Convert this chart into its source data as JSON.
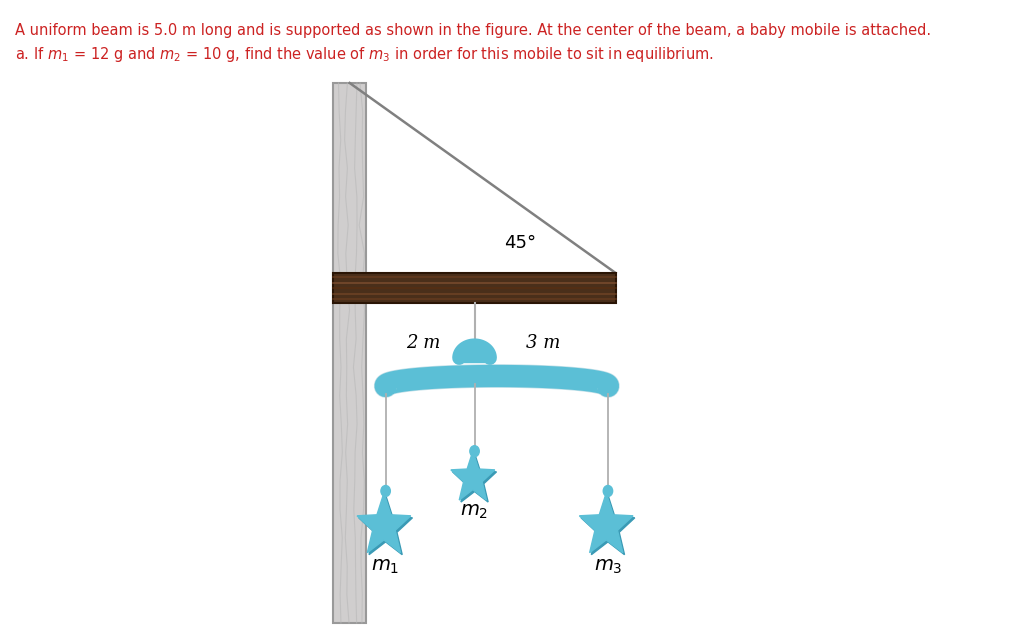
{
  "title_line1": "A uniform beam is 5.0 m long and is supported as shown in the figure. At the center of the beam, a baby mobile is attached.",
  "title_line2_parts": [
    {
      "text": "a. If m",
      "style": "normal"
    },
    {
      "text": "1",
      "style": "sub"
    },
    {
      "text": " = 12 g and m",
      "style": "normal"
    },
    {
      "text": "2",
      "style": "sub"
    },
    {
      "text": " = 10 g",
      "style": "normal"
    },
    {
      "text": ",",
      "style": "normal"
    },
    {
      "text": " find the value of m",
      "style": "normal"
    },
    {
      "text": "3",
      "style": "sub"
    },
    {
      "text": " in order for this mobile to sit in equilibrium.",
      "style": "normal"
    }
  ],
  "angle_label": "45°",
  "label_2m": "2 m",
  "label_3m": "3 m",
  "label_m1": "m",
  "label_m2": "m",
  "label_m3": "m",
  "sub1": "1",
  "sub2": "2",
  "sub3": "3",
  "wall_color": "#d0cece",
  "wall_edge_color": "#999999",
  "beam_color": "#4a2f1a",
  "beam_mid_color": "#7a5030",
  "cable_color": "#808080",
  "mobile_bar_color": "#5bbfd6",
  "mobile_bar_dark": "#3a9ab5",
  "star_light": "#7fd4e8",
  "star_mid": "#5bbfd6",
  "star_dark": "#3a9ab5",
  "string_color": "#b0b0b0",
  "background": "#ffffff",
  "text_color": "#cc2222",
  "black": "#000000"
}
